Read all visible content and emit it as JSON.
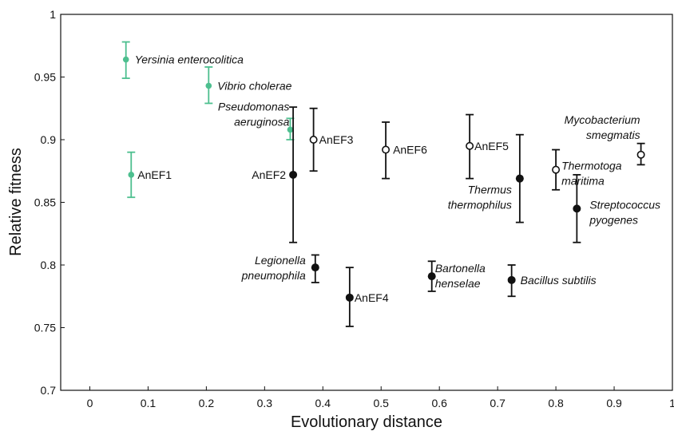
{
  "chart_data": {
    "type": "scatter",
    "title": "",
    "xlabel": "Evolutionary distance",
    "ylabel": "Relative fitness",
    "xlim": [
      -0.05,
      1.0
    ],
    "ylim": [
      0.7,
      1.0
    ],
    "xticks": [
      "0",
      "0.1",
      "0.2",
      "0.3",
      "0.4",
      "0.5",
      "0.6",
      "0.7",
      "0.8",
      "0.9",
      "1"
    ],
    "yticks": [
      "0.7",
      "0.75",
      "0.8",
      "0.85",
      "0.9",
      "0.95",
      "1"
    ],
    "grid": false,
    "colors": {
      "green": "#4dbf8f",
      "black": "#111111"
    },
    "points": [
      {
        "label": "Yersinia enterocolitica",
        "x": 0.062,
        "y": 0.964,
        "err_low": 0.949,
        "err_high": 0.978,
        "marker": "filled",
        "color": "green",
        "italic": true
      },
      {
        "label": "AnEF1",
        "x": 0.071,
        "y": 0.872,
        "err_low": 0.854,
        "err_high": 0.89,
        "marker": "filled",
        "color": "green",
        "italic": false
      },
      {
        "label": "Vibrio cholerae",
        "x": 0.204,
        "y": 0.943,
        "err_low": 0.929,
        "err_high": 0.958,
        "marker": "filled",
        "color": "green",
        "italic": true
      },
      {
        "label": "Pseudomonas aeruginosa",
        "x": 0.344,
        "y": 0.908,
        "err_low": 0.9,
        "err_high": 0.917,
        "marker": "filled",
        "color": "green",
        "italic": true
      },
      {
        "label": "AnEF2",
        "x": 0.349,
        "y": 0.872,
        "err_low": 0.818,
        "err_high": 0.926,
        "marker": "filled",
        "color": "black",
        "italic": false
      },
      {
        "label": "AnEF3",
        "x": 0.384,
        "y": 0.9,
        "err_low": 0.875,
        "err_high": 0.925,
        "marker": "open",
        "color": "black",
        "italic": false
      },
      {
        "label": "Legionella pneumophila",
        "x": 0.387,
        "y": 0.798,
        "err_low": 0.786,
        "err_high": 0.808,
        "marker": "filled",
        "color": "black",
        "italic": true
      },
      {
        "label": "AnEF4",
        "x": 0.446,
        "y": 0.774,
        "err_low": 0.751,
        "err_high": 0.798,
        "marker": "filled",
        "color": "black",
        "italic": false
      },
      {
        "label": "AnEF6",
        "x": 0.508,
        "y": 0.892,
        "err_low": 0.869,
        "err_high": 0.914,
        "marker": "open",
        "color": "black",
        "italic": false
      },
      {
        "label": "Bartonella henselae",
        "x": 0.587,
        "y": 0.791,
        "err_low": 0.779,
        "err_high": 0.803,
        "marker": "filled",
        "color": "black",
        "italic": true
      },
      {
        "label": "AnEF5",
        "x": 0.652,
        "y": 0.895,
        "err_low": 0.869,
        "err_high": 0.92,
        "marker": "open",
        "color": "black",
        "italic": false
      },
      {
        "label": "Bacillus subtilis",
        "x": 0.724,
        "y": 0.788,
        "err_low": 0.775,
        "err_high": 0.8,
        "marker": "filled",
        "color": "black",
        "italic": true
      },
      {
        "label": "Thermus thermophilus",
        "x": 0.738,
        "y": 0.869,
        "err_low": 0.834,
        "err_high": 0.904,
        "marker": "filled",
        "color": "black",
        "italic": true
      },
      {
        "label": "Thermotoga maritima",
        "x": 0.8,
        "y": 0.876,
        "err_low": 0.86,
        "err_high": 0.892,
        "marker": "open",
        "color": "black",
        "italic": true
      },
      {
        "label": "Streptococcus pyogenes",
        "x": 0.836,
        "y": 0.845,
        "err_low": 0.818,
        "err_high": 0.872,
        "marker": "filled",
        "color": "black",
        "italic": true
      },
      {
        "label": "Mycobacterium smegmatis",
        "x": 0.946,
        "y": 0.888,
        "err_low": 0.88,
        "err_high": 0.897,
        "marker": "open",
        "color": "black",
        "italic": true
      }
    ]
  }
}
